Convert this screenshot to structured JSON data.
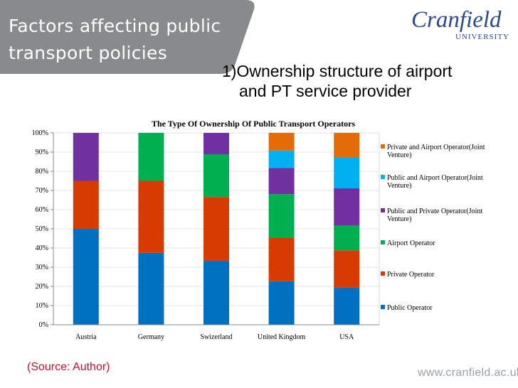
{
  "header": {
    "title_line1": "Factors affecting public",
    "title_line2": "transport policies",
    "band_color": "#888a8c"
  },
  "logo": {
    "name": "Cranfield",
    "sub": "UNIVERSITY"
  },
  "heading": {
    "line1": "1)Ownership structure of airport",
    "line2": "and PT service provider"
  },
  "source": "(Source: Author)",
  "footer_url": "www.cranfield.ac.uk",
  "chart_data": {
    "type": "bar",
    "stacked": true,
    "percent": true,
    "title": "The Type Of Ownership Of Public Transport Operators",
    "categories": [
      "Austria",
      "Germany",
      "Swizerland",
      "United Kingdom",
      "USA"
    ],
    "y_ticks": [
      "0%",
      "10%",
      "20%",
      "30%",
      "40%",
      "50%",
      "60%",
      "70%",
      "80%",
      "90%",
      "100%"
    ],
    "ylim": [
      0,
      100
    ],
    "legend_position": "right",
    "series": [
      {
        "name": "Public Operator",
        "color": "#0070c0",
        "values": [
          50,
          37.5,
          33.3,
          22.7,
          19.4
        ]
      },
      {
        "name": "Private Operator",
        "color": "#d83b01",
        "values": [
          25,
          37.5,
          33.3,
          22.7,
          19.4
        ]
      },
      {
        "name": "Airport Operator",
        "color": "#00b050",
        "values": [
          0,
          25,
          22.3,
          22.7,
          12.9
        ]
      },
      {
        "name": "Public and Private Operator(Joint Venture)",
        "color": "#7030a0",
        "values": [
          25,
          0,
          11.1,
          13.6,
          19.4
        ]
      },
      {
        "name": "Public and Airport Operator(Joint Venture)",
        "color": "#00b0f0",
        "values": [
          0,
          0,
          0,
          9.1,
          16.1
        ]
      },
      {
        "name": "Private and Airport Operator(Joint Venture)",
        "color": "#e36c09",
        "values": [
          0,
          0,
          0,
          9.2,
          12.8
        ]
      }
    ]
  }
}
